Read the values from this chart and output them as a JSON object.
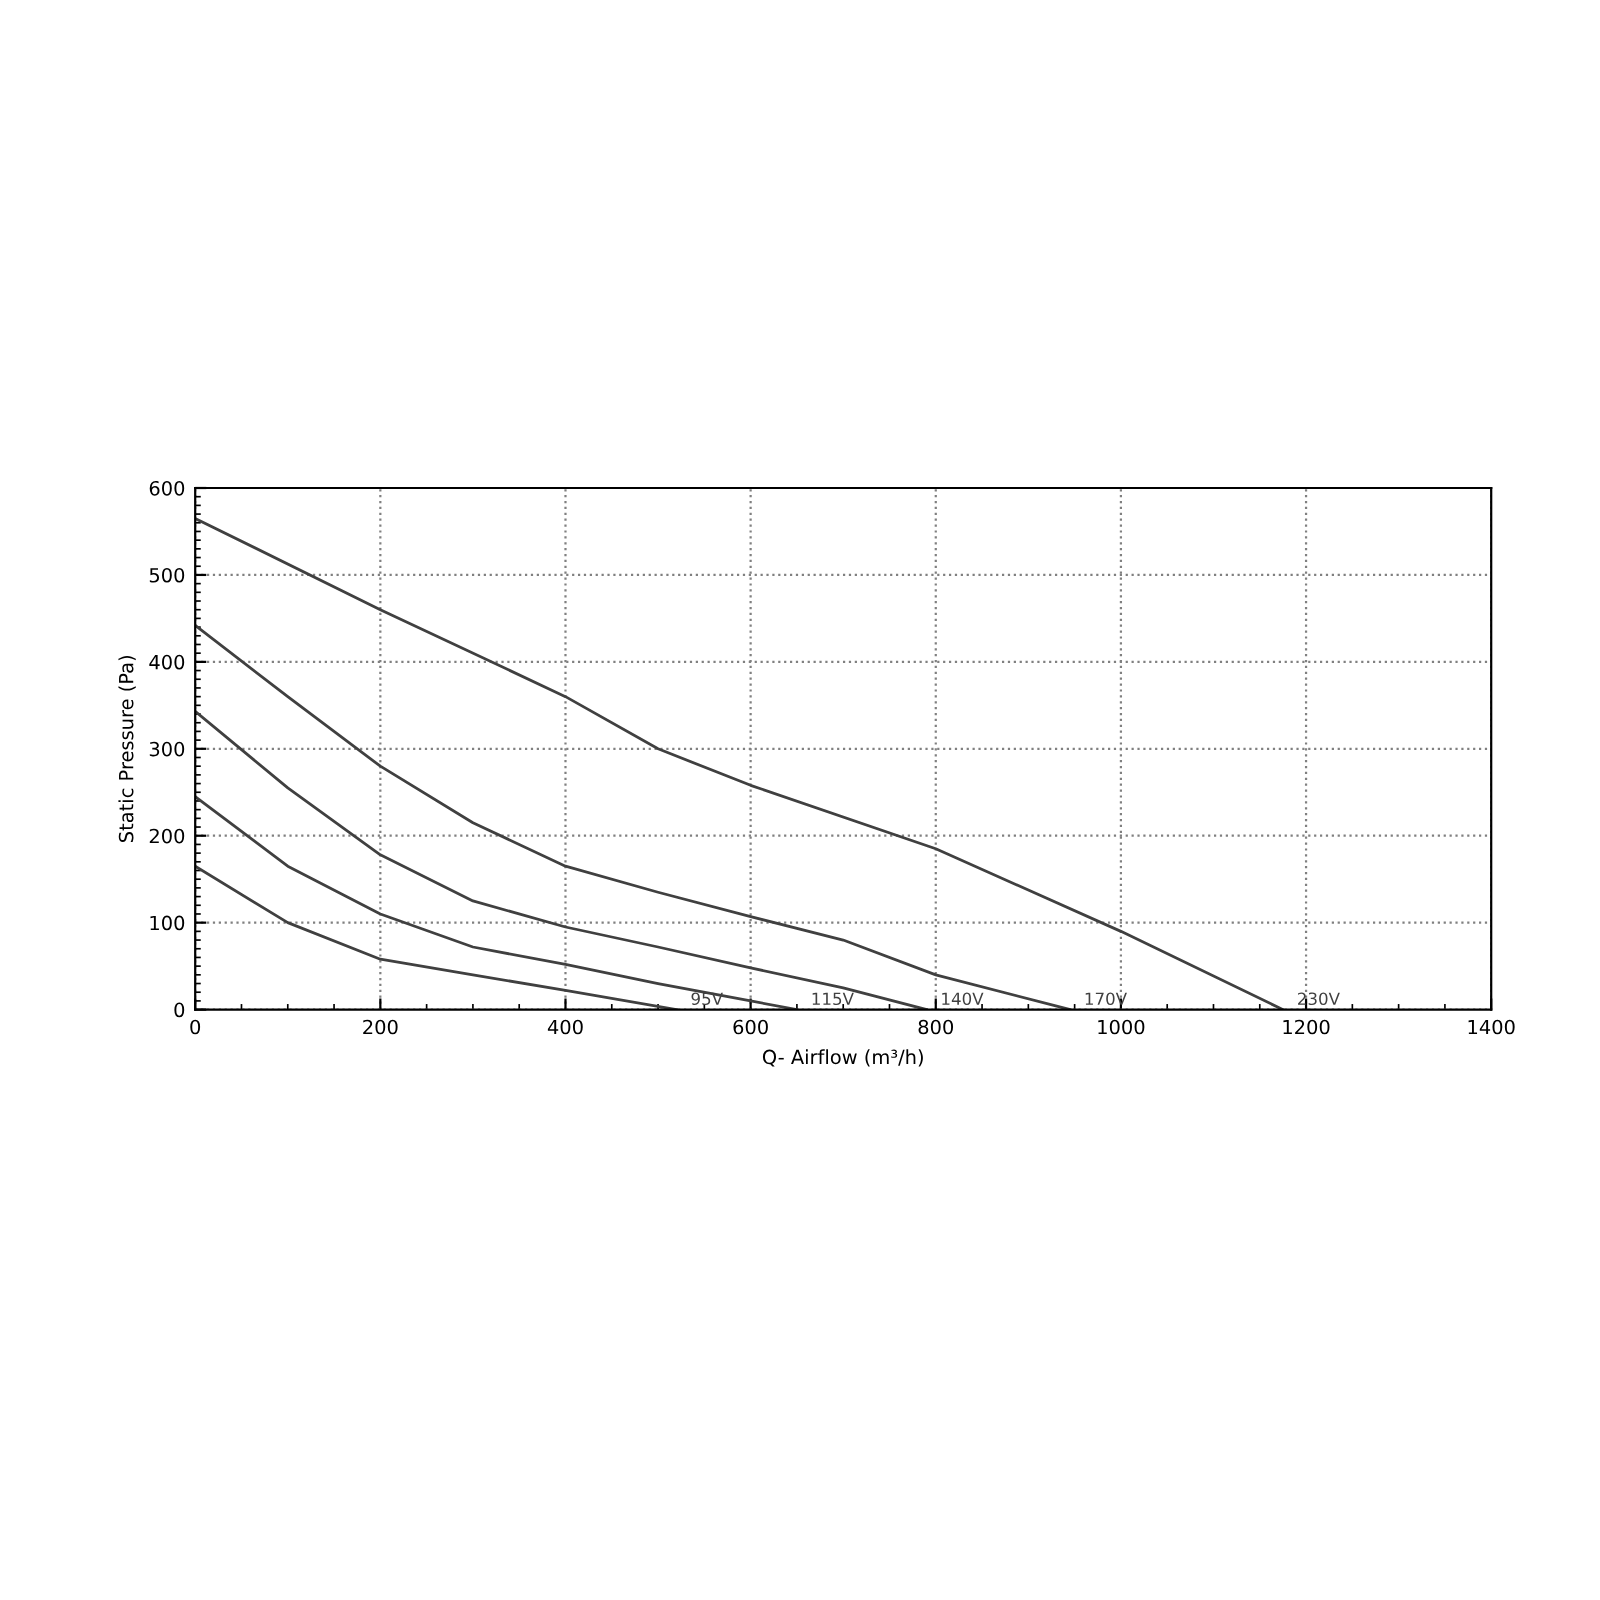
{
  "chart_data": {
    "type": "line",
    "xlabel": "Q- Airflow (m³/h)",
    "ylabel": "Static Pressure (Pa)",
    "xlim": [
      0,
      1400
    ],
    "ylim": [
      0,
      600
    ],
    "xticks": [
      0,
      200,
      400,
      600,
      800,
      1000,
      1200,
      1400
    ],
    "yticks": [
      0,
      100,
      200,
      300,
      400,
      500,
      600
    ],
    "grid": true,
    "line_style": "solid",
    "marker": "none",
    "series": [
      {
        "name": "95V",
        "color": "#404040",
        "x": [
          0,
          100,
          200,
          300,
          400,
          520
        ],
        "values": [
          165,
          100,
          58,
          40,
          22,
          0
        ]
      },
      {
        "name": "115V",
        "color": "#404040",
        "x": [
          0,
          100,
          200,
          300,
          400,
          500,
          600,
          650
        ],
        "values": [
          245,
          165,
          110,
          72,
          52,
          30,
          10,
          0
        ]
      },
      {
        "name": "140V",
        "color": "#404040",
        "x": [
          0,
          100,
          200,
          300,
          400,
          500,
          600,
          700,
          790
        ],
        "values": [
          343,
          255,
          178,
          125,
          95,
          72,
          48,
          25,
          0
        ]
      },
      {
        "name": "170V",
        "color": "#404040",
        "x": [
          0,
          100,
          200,
          300,
          400,
          500,
          600,
          700,
          800,
          945
        ],
        "values": [
          442,
          360,
          280,
          215,
          165,
          135,
          107,
          80,
          40,
          0
        ]
      },
      {
        "name": "230V",
        "color": "#404040",
        "x": [
          0,
          200,
          400,
          500,
          600,
          800,
          1000,
          1175
        ],
        "values": [
          565,
          460,
          360,
          300,
          258,
          185,
          90,
          0
        ]
      }
    ]
  }
}
